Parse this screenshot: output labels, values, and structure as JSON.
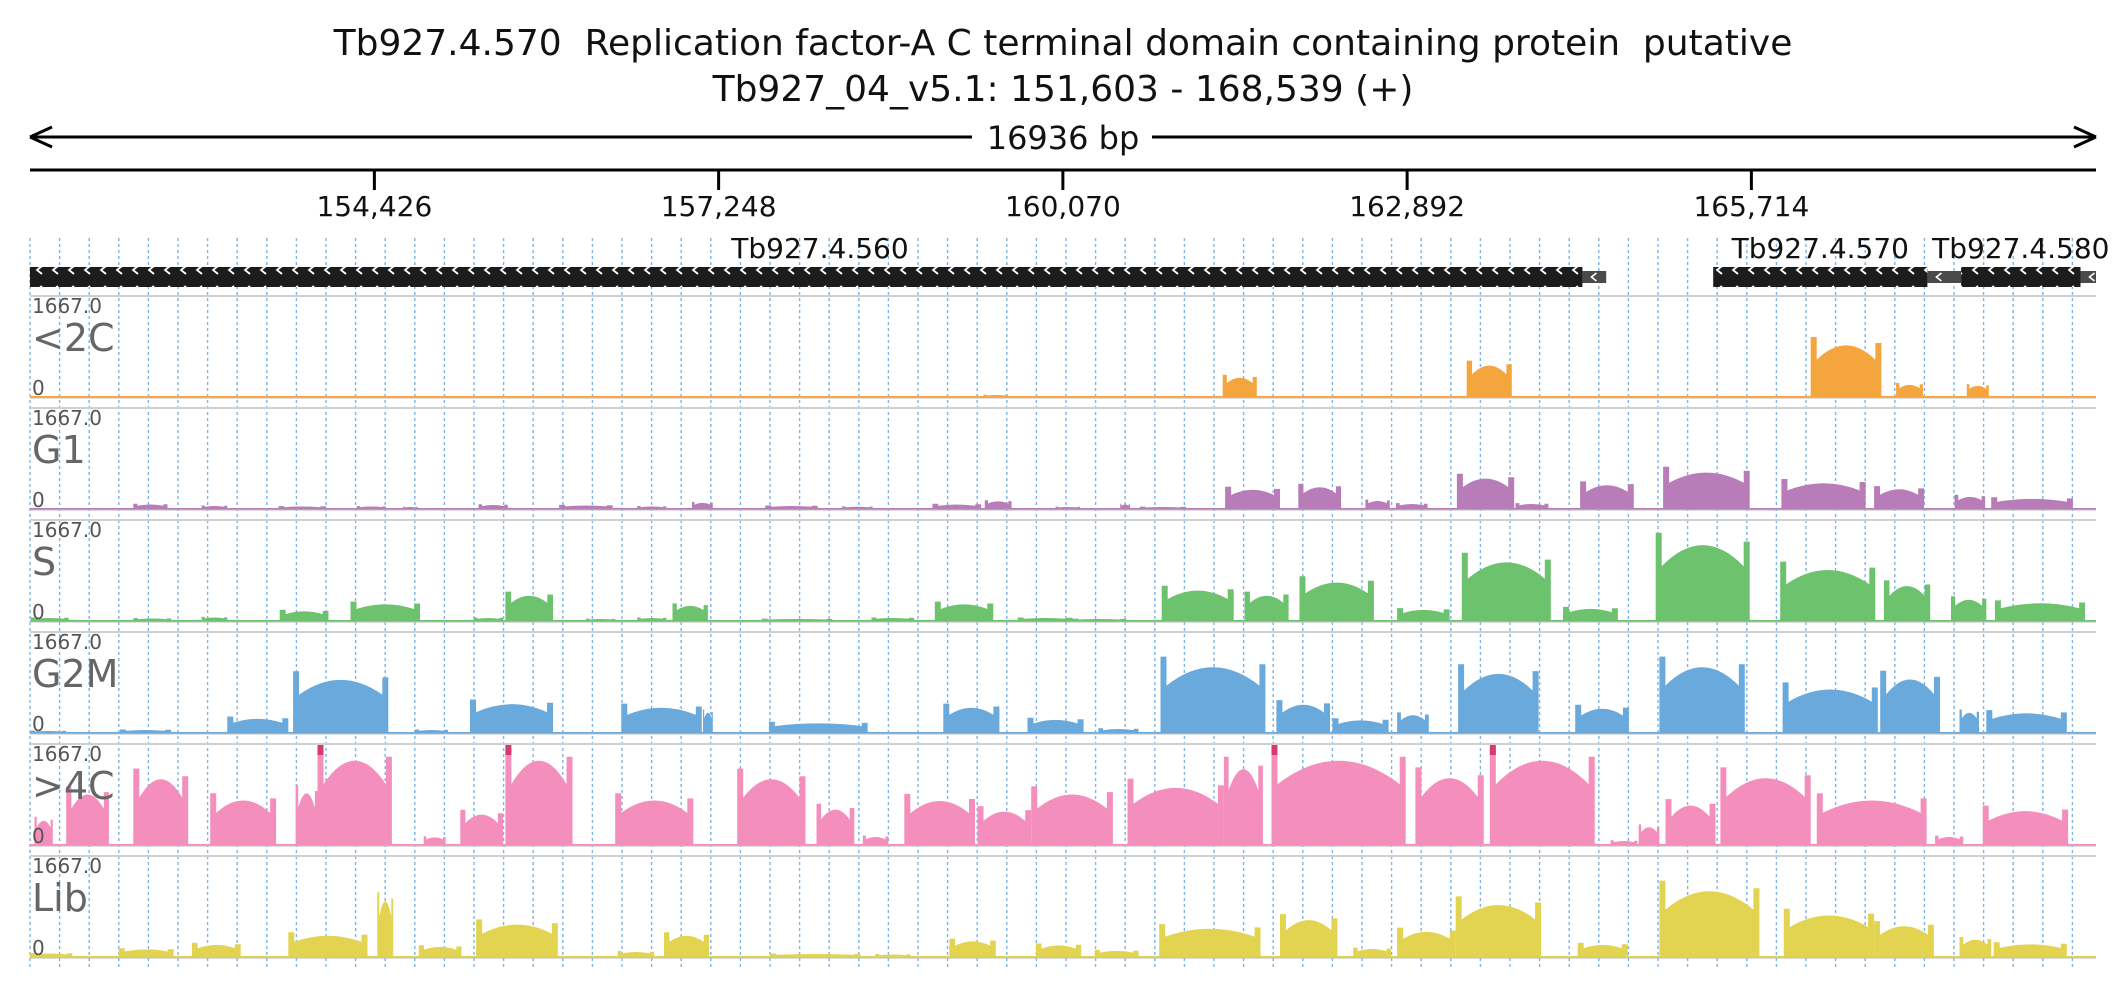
{
  "header": {
    "title": "Tb927.4.570  Replication factor-A C terminal domain containing protein  putative",
    "subtitle": "Tb927_04_v5.1: 151,603 - 168,539 (+)"
  },
  "chart_data": {
    "type": "area",
    "region": {
      "chromosome": "Tb927_04_v5.1",
      "start": 151603,
      "end": 168539,
      "strand": "+",
      "length_label": "16936 bp"
    },
    "axis_ticks": [
      {
        "value": 154426,
        "label": "154,426"
      },
      {
        "value": 157248,
        "label": "157,248"
      },
      {
        "value": 160070,
        "label": "160,070"
      },
      {
        "value": 162892,
        "label": "162,892"
      },
      {
        "value": 165714,
        "label": "165,714"
      }
    ],
    "grid": true,
    "genes": [
      {
        "name": "Tb927.4.560",
        "start": 151603,
        "end": 164329,
        "strand": "-",
        "utr": [
          164329,
          164524
        ]
      },
      {
        "name": "Tb927.4.570",
        "start": 165401,
        "end": 167157,
        "strand": "-",
        "utr": [
          167157,
          167433
        ]
      },
      {
        "name": "Tb927.4.580",
        "start": 167433,
        "end": 168412,
        "strand": "-",
        "utr": [
          168412,
          168539
        ]
      }
    ],
    "ylim": [
      0,
      1667.0
    ],
    "y_max_label": "1667.0",
    "y_min_label": "0",
    "series": [
      {
        "name": "<2C",
        "color": "#f5a53d",
        "peaks": [
          [
            159420,
            159620,
            40
          ],
          [
            161380,
            161660,
            380
          ],
          [
            163380,
            163750,
            620
          ],
          [
            166200,
            166780,
            1020
          ],
          [
            166900,
            167120,
            240
          ],
          [
            167480,
            167660,
            220
          ]
        ]
      },
      {
        "name": "G1",
        "color": "#b87db8",
        "peaks": [
          [
            152450,
            152730,
            90
          ],
          [
            153010,
            153220,
            60
          ],
          [
            153640,
            154030,
            50
          ],
          [
            154280,
            154520,
            50
          ],
          [
            154660,
            154780,
            40
          ],
          [
            155280,
            155520,
            80
          ],
          [
            155940,
            156380,
            70
          ],
          [
            156580,
            156820,
            50
          ],
          [
            157030,
            157200,
            120
          ],
          [
            157630,
            158060,
            60
          ],
          [
            158260,
            158510,
            45
          ],
          [
            159000,
            159400,
            90
          ],
          [
            159430,
            159650,
            150
          ],
          [
            160010,
            160210,
            40
          ],
          [
            160540,
            160620,
            90
          ],
          [
            160700,
            161080,
            40
          ],
          [
            161400,
            161850,
            380
          ],
          [
            162000,
            162350,
            430
          ],
          [
            162550,
            162750,
            160
          ],
          [
            162800,
            163060,
            100
          ],
          [
            163300,
            163770,
            600
          ],
          [
            163780,
            164050,
            100
          ],
          [
            164310,
            164750,
            470
          ],
          [
            164990,
            165700,
            720
          ],
          [
            165960,
            166650,
            510
          ],
          [
            166720,
            167130,
            390
          ],
          [
            167380,
            167630,
            240
          ],
          [
            167680,
            168350,
            200
          ]
        ]
      },
      {
        "name": "S",
        "color": "#6dc26d",
        "peaks": [
          [
            151610,
            151920,
            60
          ],
          [
            152450,
            152760,
            50
          ],
          [
            153010,
            153220,
            70
          ],
          [
            153650,
            154050,
            190
          ],
          [
            154230,
            154800,
            330
          ],
          [
            155240,
            155480,
            60
          ],
          [
            155500,
            155890,
            500
          ],
          [
            156160,
            156400,
            40
          ],
          [
            156580,
            156820,
            60
          ],
          [
            156870,
            157160,
            300
          ],
          [
            157600,
            158180,
            40
          ],
          [
            158500,
            158850,
            60
          ],
          [
            159020,
            159500,
            330
          ],
          [
            159700,
            160150,
            60
          ],
          [
            160150,
            160590,
            40
          ],
          [
            160880,
            161470,
            600
          ],
          [
            161560,
            161920,
            500
          ],
          [
            162010,
            162620,
            760
          ],
          [
            162810,
            163240,
            220
          ],
          [
            163340,
            164070,
            1160
          ],
          [
            164170,
            164620,
            240
          ],
          [
            164930,
            165700,
            1500
          ],
          [
            165950,
            166730,
            1010
          ],
          [
            166800,
            167180,
            690
          ],
          [
            167350,
            167640,
            420
          ],
          [
            167710,
            168450,
            350
          ]
        ]
      },
      {
        "name": "G2M",
        "color": "#6aa9dc",
        "peaks": [
          [
            151610,
            151900,
            40
          ],
          [
            152340,
            152760,
            60
          ],
          [
            153220,
            153720,
            280
          ],
          [
            153760,
            154540,
            1050
          ],
          [
            154760,
            155030,
            60
          ],
          [
            155210,
            155890,
            570
          ],
          [
            156450,
            157110,
            500
          ],
          [
            157120,
            157200,
            400
          ],
          [
            157660,
            158470,
            190
          ],
          [
            159090,
            159550,
            500
          ],
          [
            159780,
            160240,
            260
          ],
          [
            160360,
            160690,
            80
          ],
          [
            160870,
            161730,
            1300
          ],
          [
            161820,
            162260,
            560
          ],
          [
            162280,
            162740,
            250
          ],
          [
            162810,
            163070,
            350
          ],
          [
            163310,
            163970,
            1170
          ],
          [
            164270,
            164710,
            480
          ],
          [
            164960,
            165660,
            1300
          ],
          [
            165970,
            166750,
            860
          ],
          [
            166770,
            167260,
            1060
          ],
          [
            167420,
            167580,
            400
          ],
          [
            167640,
            168300,
            390
          ]
        ]
      },
      {
        "name": ">4C",
        "color": "#f48fbd",
        "peaks": [
          [
            151640,
            151790,
            480
          ],
          [
            151900,
            152250,
            1000
          ],
          [
            152450,
            152900,
            1300
          ],
          [
            153080,
            153620,
            880
          ],
          [
            153780,
            153960,
            1020
          ],
          [
            153960,
            154570,
            1667
          ],
          [
            154830,
            155010,
            150
          ],
          [
            155130,
            155480,
            600
          ],
          [
            155500,
            156050,
            1667
          ],
          [
            156400,
            157040,
            880
          ],
          [
            157400,
            157960,
            1300
          ],
          [
            158050,
            158360,
            700
          ],
          [
            158430,
            158640,
            160
          ],
          [
            158770,
            159350,
            870
          ],
          [
            159370,
            159810,
            660
          ],
          [
            159810,
            160480,
            1000
          ],
          [
            160600,
            161390,
            1130
          ],
          [
            161390,
            161710,
            1500
          ],
          [
            161780,
            162880,
            1667
          ],
          [
            162960,
            163520,
            1320
          ],
          [
            163570,
            164430,
            1667
          ],
          [
            164560,
            164780,
            80
          ],
          [
            164790,
            164960,
            350
          ],
          [
            165010,
            165420,
            780
          ],
          [
            165460,
            166200,
            1320
          ],
          [
            166250,
            167150,
            880
          ],
          [
            167220,
            167450,
            160
          ],
          [
            167610,
            168310,
            670
          ]
        ]
      },
      {
        "name": "Lib",
        "color": "#e2d451",
        "peaks": [
          [
            151600,
            151950,
            70
          ],
          [
            152330,
            152780,
            150
          ],
          [
            152930,
            153330,
            240
          ],
          [
            153720,
            154370,
            420
          ],
          [
            154450,
            154580,
            1100
          ],
          [
            154790,
            155140,
            200
          ],
          [
            155260,
            155930,
            640
          ],
          [
            156420,
            156720,
            100
          ],
          [
            156800,
            157170,
            420
          ],
          [
            157670,
            158410,
            60
          ],
          [
            158530,
            158820,
            50
          ],
          [
            159140,
            159520,
            310
          ],
          [
            159850,
            160220,
            230
          ],
          [
            160330,
            160690,
            120
          ],
          [
            160860,
            161690,
            560
          ],
          [
            161850,
            162320,
            730
          ],
          [
            162450,
            162760,
            160
          ],
          [
            162810,
            163290,
            500
          ],
          [
            163290,
            163990,
            1030
          ],
          [
            164290,
            164700,
            240
          ],
          [
            164960,
            165780,
            1300
          ],
          [
            165980,
            166720,
            820
          ],
          [
            166720,
            167210,
            610
          ],
          [
            167420,
            167680,
            340
          ],
          [
            167700,
            168300,
            250
          ]
        ]
      }
    ]
  }
}
